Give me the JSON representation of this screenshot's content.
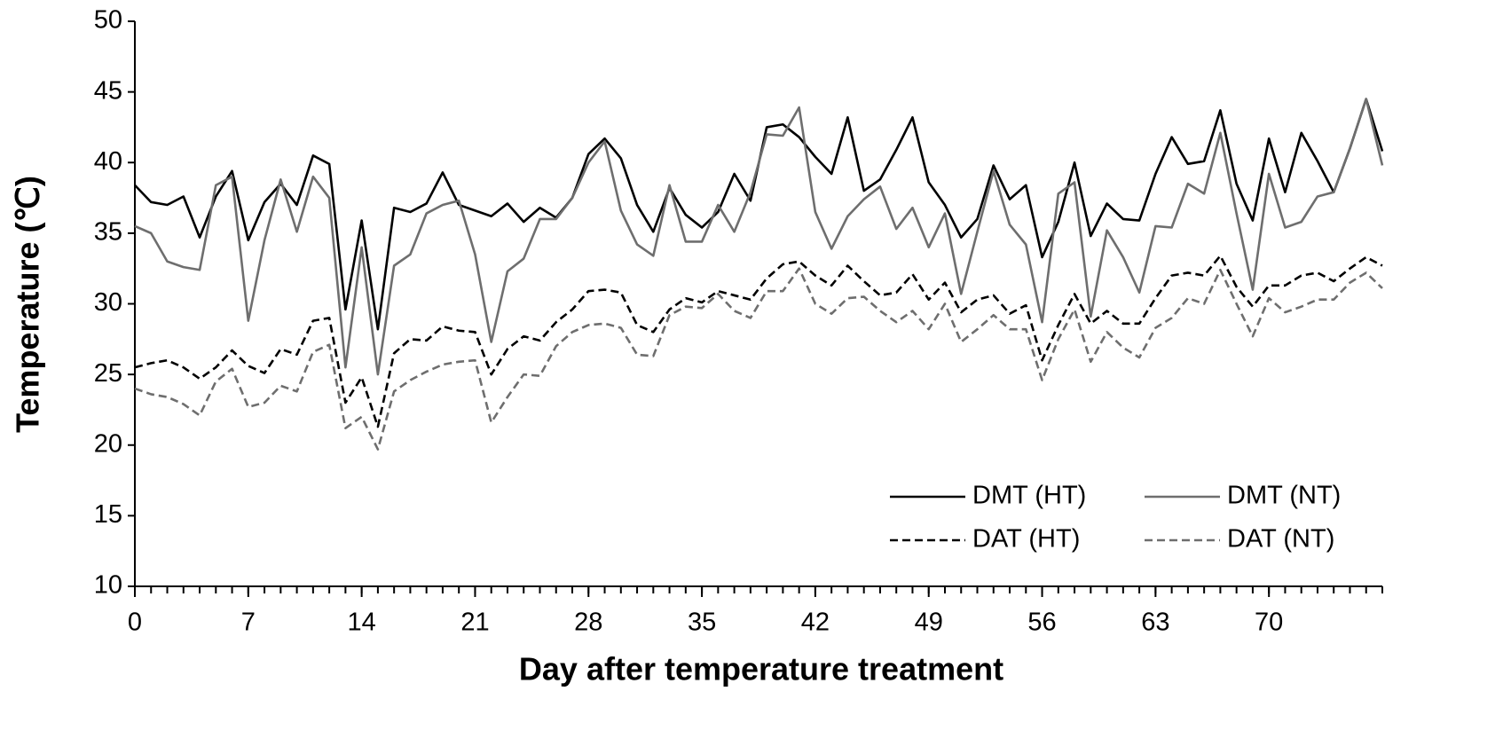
{
  "chart_data": {
    "type": "line",
    "xlabel": "Day after temperature treatment",
    "ylabel": "Temperature (℃)",
    "x": [
      0,
      1,
      2,
      3,
      4,
      5,
      6,
      7,
      8,
      9,
      10,
      11,
      12,
      13,
      14,
      15,
      16,
      17,
      18,
      19,
      20,
      21,
      22,
      23,
      24,
      25,
      26,
      27,
      28,
      29,
      30,
      31,
      32,
      33,
      34,
      35,
      36,
      37,
      38,
      39,
      40,
      41,
      42,
      43,
      44,
      45,
      46,
      47,
      48,
      49,
      50,
      51,
      52,
      53,
      54,
      55,
      56,
      57,
      58,
      59,
      60,
      61,
      62,
      63,
      64,
      65,
      66,
      67,
      68,
      69,
      70,
      71,
      72,
      73,
      74,
      75,
      76,
      77
    ],
    "series": [
      {
        "name": "DMT (HT)",
        "color": "#000000",
        "linestyle": "solid",
        "values": [
          38.4,
          37.2,
          37.0,
          37.6,
          34.7,
          37.6,
          39.4,
          34.5,
          37.2,
          38.5,
          37.0,
          40.5,
          39.9,
          29.6,
          35.9,
          28.2,
          36.8,
          36.5,
          37.1,
          39.3,
          37.0,
          36.6,
          36.2,
          37.1,
          35.8,
          36.8,
          36.1,
          37.5,
          40.6,
          41.7,
          40.3,
          37.0,
          35.1,
          38.2,
          36.3,
          35.4,
          36.5,
          39.2,
          37.3,
          42.5,
          42.7,
          41.8,
          40.4,
          39.2,
          43.2,
          38.0,
          38.8,
          40.9,
          43.2,
          38.6,
          37.0,
          34.7,
          36.0,
          39.8,
          37.4,
          38.4,
          33.3,
          35.8,
          40.0,
          34.8,
          37.1,
          36.0,
          35.9,
          39.2,
          41.8,
          39.9,
          40.1,
          43.7,
          38.5,
          35.9,
          41.7,
          37.9,
          42.1,
          40.1,
          37.9,
          41.0,
          44.5,
          40.8
        ]
      },
      {
        "name": "DMT (NT)",
        "color": "#6e6e6e",
        "linestyle": "solid",
        "values": [
          35.5,
          35.0,
          33.0,
          32.6,
          32.4,
          38.4,
          39.0,
          28.8,
          34.5,
          38.8,
          35.1,
          39.0,
          37.5,
          25.5,
          34.0,
          25.0,
          32.7,
          33.5,
          36.4,
          37.0,
          37.3,
          33.5,
          27.3,
          32.3,
          33.2,
          36.0,
          36.0,
          37.5,
          40.0,
          41.5,
          36.6,
          34.2,
          33.4,
          38.4,
          34.4,
          34.4,
          37.0,
          35.1,
          37.9,
          42.0,
          41.9,
          43.9,
          36.5,
          33.9,
          36.2,
          37.4,
          38.3,
          35.3,
          36.8,
          34.0,
          36.4,
          30.7,
          35.1,
          39.4,
          35.6,
          34.2,
          28.7,
          37.8,
          38.6,
          29.1,
          35.2,
          33.3,
          30.8,
          35.5,
          35.4,
          38.5,
          37.8,
          42.1,
          36.4,
          31.0,
          39.2,
          35.4,
          35.8,
          37.6,
          37.9,
          41.0,
          44.5,
          39.8
        ]
      },
      {
        "name": "DAT (HT)",
        "color": "#000000",
        "linestyle": "dashed",
        "values": [
          25.5,
          25.8,
          26.0,
          25.5,
          24.7,
          25.5,
          26.7,
          25.6,
          25.1,
          26.8,
          26.4,
          28.8,
          29.0,
          23.0,
          24.8,
          21.3,
          26.5,
          27.5,
          27.4,
          28.4,
          28.1,
          28.0,
          25.0,
          26.8,
          27.7,
          27.4,
          28.7,
          29.6,
          30.9,
          31.0,
          30.8,
          28.5,
          28.0,
          29.6,
          30.4,
          30.1,
          30.9,
          30.6,
          30.3,
          31.8,
          32.8,
          33.0,
          32.0,
          31.3,
          32.7,
          31.6,
          30.6,
          30.8,
          32.1,
          30.3,
          31.5,
          29.4,
          30.3,
          30.6,
          29.3,
          29.9,
          26.0,
          28.5,
          30.7,
          28.6,
          29.5,
          28.6,
          28.6,
          30.4,
          32.0,
          32.2,
          32.0,
          33.4,
          31.2,
          29.8,
          31.3,
          31.3,
          32.0,
          32.2,
          31.6,
          32.5,
          33.3,
          32.7
        ]
      },
      {
        "name": "DAT (NT)",
        "color": "#6e6e6e",
        "linestyle": "dashed",
        "values": [
          24.0,
          23.6,
          23.4,
          22.9,
          22.1,
          24.5,
          25.4,
          22.7,
          23.0,
          24.2,
          23.8,
          26.6,
          27.1,
          21.2,
          22.0,
          19.7,
          23.8,
          24.6,
          25.2,
          25.7,
          25.9,
          26.0,
          21.6,
          23.4,
          25.0,
          24.9,
          27.0,
          28.0,
          28.5,
          28.6,
          28.3,
          26.4,
          26.3,
          29.2,
          29.8,
          29.7,
          30.7,
          29.5,
          29.0,
          30.9,
          30.9,
          32.5,
          30.0,
          29.3,
          30.4,
          30.5,
          29.5,
          28.7,
          29.5,
          28.2,
          30.0,
          27.3,
          28.2,
          29.2,
          28.2,
          28.2,
          24.6,
          27.5,
          29.6,
          25.9,
          28.0,
          26.9,
          26.2,
          28.3,
          29.0,
          30.4,
          30.0,
          32.4,
          30.0,
          27.7,
          30.4,
          29.4,
          29.8,
          30.3,
          30.3,
          31.5,
          32.2,
          31.1
        ]
      }
    ],
    "xlim": [
      0,
      77
    ],
    "xticks": [
      0,
      7,
      14,
      21,
      28,
      35,
      42,
      49,
      56,
      63,
      70
    ],
    "ylim": [
      10,
      50
    ],
    "yticks": [
      10,
      15,
      20,
      25,
      30,
      35,
      40,
      45,
      50
    ],
    "grid": false,
    "legend": "lower right"
  }
}
